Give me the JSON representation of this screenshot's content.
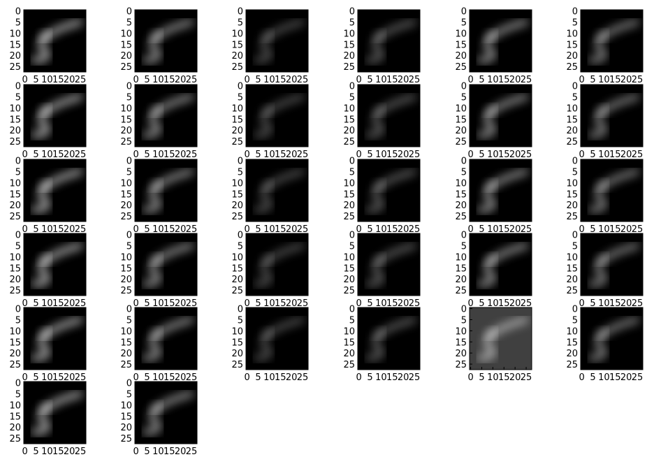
{
  "figure": {
    "rows": 6,
    "cols": 6,
    "panel_count": 32
  },
  "chart_data": {
    "type": "heatmap",
    "title": "",
    "xlabel": "",
    "ylabel": "",
    "x_ticks": [
      "0",
      "5",
      "10",
      "15",
      "20",
      "25"
    ],
    "y_ticks": [
      "0",
      "5",
      "10",
      "15",
      "20",
      "25"
    ],
    "xlim": [
      -0.5,
      27.5
    ],
    "ylim": [
      27.5,
      -0.5
    ],
    "colormap": "gray",
    "background_color": "#000000",
    "panel_12_background_color": "#404040",
    "image_size": [
      28,
      28
    ],
    "description_of_content": "",
    "panels": [
      {
        "index": 1
      },
      {
        "index": 2
      },
      {
        "index": 3
      },
      {
        "index": 4
      },
      {
        "index": 5
      },
      {
        "index": 6
      },
      {
        "index": 7
      },
      {
        "index": 8
      },
      {
        "index": 9
      },
      {
        "index": 10
      },
      {
        "index": 11
      },
      {
        "index": 12
      },
      {
        "index": 13
      },
      {
        "index": 14
      },
      {
        "index": 15
      },
      {
        "index": 16
      },
      {
        "index": 17
      },
      {
        "index": 18
      },
      {
        "index": 19
      },
      {
        "index": 20
      },
      {
        "index": 21
      },
      {
        "index": 22
      },
      {
        "index": 23
      },
      {
        "index": 24
      },
      {
        "index": 25
      },
      {
        "index": 26
      },
      {
        "index": 27
      },
      {
        "index": 28
      },
      {
        "index": 29
      },
      {
        "index": 30
      },
      {
        "index": 31
      },
      {
        "index": 32
      }
    ]
  }
}
